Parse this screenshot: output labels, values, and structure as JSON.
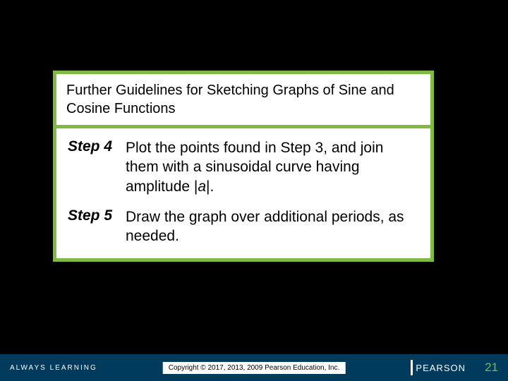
{
  "title": "Further Guidelines for Sketching Graphs of Sine and Cosine Functions",
  "steps": [
    {
      "label": "Step 4",
      "text_pre": "Plot the points found in Step 3, and join them with a sinusoidal curve having amplitude |",
      "var": "a",
      "text_post": "|."
    },
    {
      "label": "Step 5",
      "text_pre": "Draw the graph over additional periods, as needed.",
      "var": "",
      "text_post": ""
    }
  ],
  "footer": {
    "left": "ALWAYS LEARNING",
    "copyright": "Copyright © 2017, 2013, 2009 Pearson Education, Inc.",
    "brand": "PEARSON",
    "page": "21"
  },
  "colors": {
    "background": "#000000",
    "accent": "#7ebb42",
    "footer_bg": "#003a5d",
    "white": "#ffffff"
  }
}
